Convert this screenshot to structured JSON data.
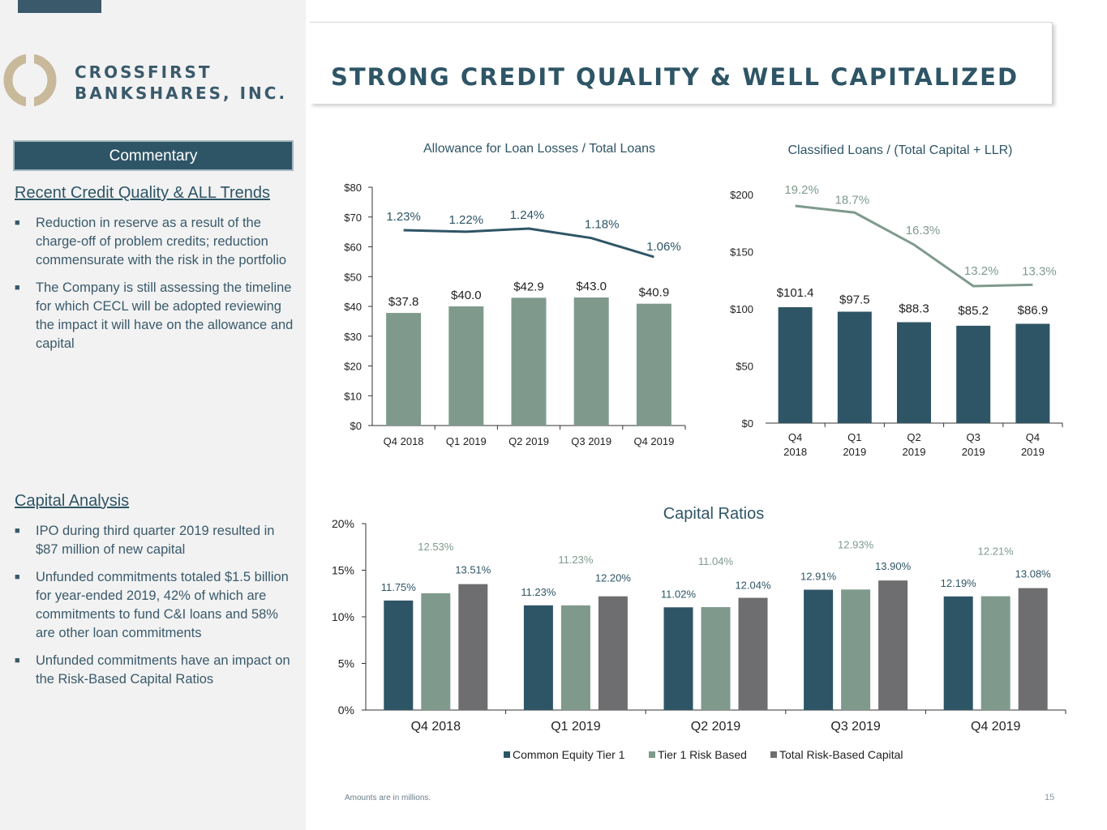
{
  "header": {
    "brand_line1": "CROSSFIRST",
    "brand_line2": "BANKSHARES, INC.",
    "title": "STRONG CREDIT QUALITY & WELL CAPITALIZED"
  },
  "sidebar": {
    "commentary_label": "Commentary",
    "section1": {
      "heading": "Recent Credit Quality & ALL Trends",
      "bullets": [
        "Reduction in reserve as a result of the charge-off of problem credits; reduction commensurate with the risk in the portfolio",
        "The Company is still assessing the timeline for which CECL will be adopted reviewing the impact it will have on the allowance and capital"
      ]
    },
    "section2": {
      "heading": "Capital Analysis",
      "bullets": [
        "IPO during third quarter 2019 resulted in $87 million of new capital",
        "Unfunded commitments totaled $1.5 billion for year-ended 2019, 42% of which are commitments to fund C&I loans and 58% are other loan commitments",
        "Unfunded commitments have an impact on the Risk-Based Capital Ratios"
      ]
    }
  },
  "colors": {
    "navy": "#2e5566",
    "sage": "#7f9a8d",
    "gray": "#6e6e70",
    "line_dark": "#2e5566",
    "line_light": "#7f9a8d"
  },
  "chart_data": [
    {
      "type": "bar",
      "title": "Allowance for Loan Losses / Total Loans",
      "categories": [
        "Q4 2018",
        "Q1 2019",
        "Q2 2019",
        "Q3 2019",
        "Q4 2019"
      ],
      "values": [
        37.8,
        40.0,
        42.9,
        43.0,
        40.9
      ],
      "value_labels": [
        "$37.8",
        "$40.0",
        "$42.9",
        "$43.0",
        "$40.9"
      ],
      "ylim": [
        0,
        80
      ],
      "yticks": [
        "$0",
        "$10",
        "$20",
        "$30",
        "$40",
        "$50",
        "$60",
        "$70",
        "$80"
      ],
      "overlay_line": {
        "name": "ALL / Total Loans",
        "values": [
          1.23,
          1.22,
          1.24,
          1.18,
          1.06
        ],
        "labels": [
          "1.23%",
          "1.22%",
          "1.24%",
          "1.18%",
          "1.06%"
        ]
      }
    },
    {
      "type": "bar",
      "title": "Classified Loans / (Total Capital + LLR)",
      "categories": [
        "Q4 2018",
        "Q1 2019",
        "Q2 2019",
        "Q3 2019",
        "Q4 2019"
      ],
      "category_lines": [
        [
          "Q4",
          "2018"
        ],
        [
          "Q1",
          "2019"
        ],
        [
          "Q2",
          "2019"
        ],
        [
          "Q3",
          "2019"
        ],
        [
          "Q4",
          "2019"
        ]
      ],
      "values": [
        101.4,
        97.5,
        88.3,
        85.2,
        86.9
      ],
      "value_labels": [
        "$101.4",
        "$97.5",
        "$88.3",
        "$85.2",
        "$86.9"
      ],
      "ylim": [
        0,
        200
      ],
      "yticks": [
        "$0",
        "$50",
        "$100",
        "$150",
        "$200"
      ],
      "overlay_line": {
        "name": "Classified / (Total Capital + LLR)",
        "values": [
          19.2,
          18.7,
          16.3,
          13.2,
          13.3
        ],
        "labels": [
          "19.2%",
          "18.7%",
          "16.3%",
          "13.2%",
          "13.3%"
        ]
      }
    },
    {
      "type": "bar",
      "title": "Capital Ratios",
      "categories": [
        "Q4 2018",
        "Q1 2019",
        "Q2 2019",
        "Q3 2019",
        "Q4 2019"
      ],
      "ylim": [
        0,
        20
      ],
      "yticks": [
        "0%",
        "5%",
        "10%",
        "15%",
        "20%"
      ],
      "series": [
        {
          "name": "Common Equity Tier 1",
          "values": [
            11.75,
            11.23,
            11.02,
            12.91,
            12.19
          ],
          "labels": [
            "11.75%",
            "11.23%",
            "11.02%",
            "12.91%",
            "12.19%"
          ]
        },
        {
          "name": "Tier 1 Risk Based",
          "values": [
            12.53,
            11.23,
            11.04,
            12.93,
            12.21
          ],
          "labels": [
            "12.53%",
            "11.23%",
            "11.04%",
            "12.93%",
            "12.21%"
          ]
        },
        {
          "name": "Total Risk-Based Capital",
          "values": [
            13.51,
            12.2,
            12.04,
            13.9,
            13.08
          ],
          "labels": [
            "13.51%",
            "12.20%",
            "12.04%",
            "13.90%",
            "13.08%"
          ]
        }
      ],
      "legend": "bottom"
    }
  ],
  "footer": {
    "note": "Amounts are in millions.",
    "page_number": "15"
  }
}
